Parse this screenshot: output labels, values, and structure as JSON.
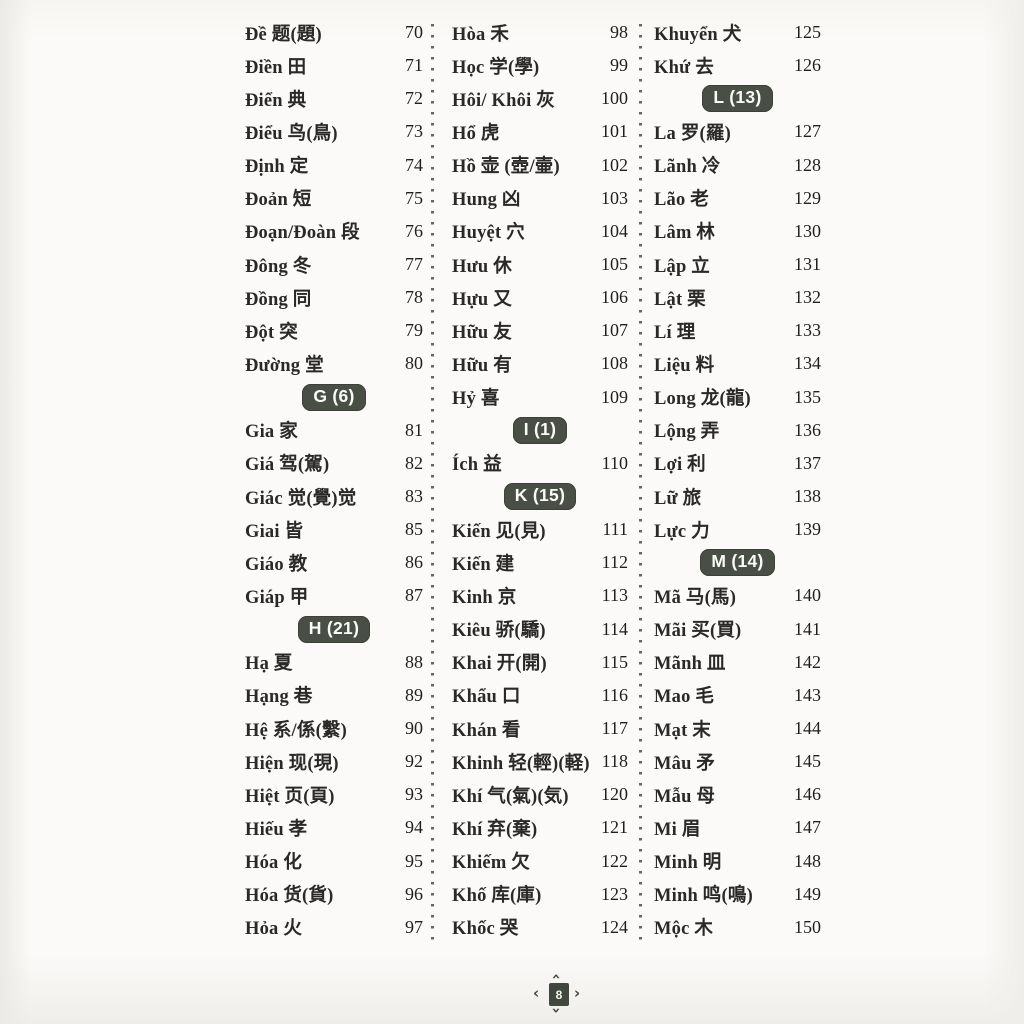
{
  "colors": {
    "badge_bg": "#4a4f46",
    "text": "#2a2927",
    "pager_dark": "#41463e"
  },
  "pager": {
    "number": "8",
    "chevron_left": "‹",
    "chevron_right": "›"
  },
  "columns": [
    {
      "rows": [
        {
          "type": "entry",
          "text": "Đề 题(題)",
          "page": "70"
        },
        {
          "type": "entry",
          "text": "Điền 田",
          "page": "71"
        },
        {
          "type": "entry",
          "text": "Điển 典",
          "page": "72"
        },
        {
          "type": "entry",
          "text": "Điểu 鸟(鳥)",
          "page": "73"
        },
        {
          "type": "entry",
          "text": "Định 定",
          "page": "74"
        },
        {
          "type": "entry",
          "text": "Đoản 短",
          "page": "75"
        },
        {
          "type": "entry",
          "text": "Đoạn/Đoàn 段",
          "page": "76"
        },
        {
          "type": "entry",
          "text": "Đông 冬",
          "page": "77"
        },
        {
          "type": "entry",
          "text": "Đồng 同",
          "page": "78"
        },
        {
          "type": "entry",
          "text": "Đột 突",
          "page": "79"
        },
        {
          "type": "entry",
          "text": "Đường 堂",
          "page": "80"
        },
        {
          "type": "badge",
          "label": "G (6)"
        },
        {
          "type": "entry",
          "text": "Gia 家",
          "page": "81"
        },
        {
          "type": "entry",
          "text": "Giá 驾(駕)",
          "page": "82"
        },
        {
          "type": "entry",
          "text": "Giác 觉(覺)觉",
          "page": "83"
        },
        {
          "type": "entry",
          "text": "Giai 皆",
          "page": "85"
        },
        {
          "type": "entry",
          "text": "Giáo 教",
          "page": "86"
        },
        {
          "type": "entry",
          "text": "Giáp 甲",
          "page": "87"
        },
        {
          "type": "badge",
          "label": "H (21)"
        },
        {
          "type": "entry",
          "text": "Hạ 夏",
          "page": "88"
        },
        {
          "type": "entry",
          "text": "Hạng 巷",
          "page": "89"
        },
        {
          "type": "entry",
          "text": "Hệ 系/係(繫)",
          "page": "90"
        },
        {
          "type": "entry",
          "text": "Hiện 现(現)",
          "page": "92"
        },
        {
          "type": "entry",
          "text": "Hiệt 页(頁)",
          "page": "93"
        },
        {
          "type": "entry",
          "text": "Hiếu 孝",
          "page": "94"
        },
        {
          "type": "entry",
          "text": "Hóa 化",
          "page": "95"
        },
        {
          "type": "entry",
          "text": "Hóa 货(貨)",
          "page": "96"
        },
        {
          "type": "entry",
          "text": "Hỏa 火",
          "page": "97"
        }
      ]
    },
    {
      "rows": [
        {
          "type": "entry",
          "text": "Hòa 禾",
          "page": "98"
        },
        {
          "type": "entry",
          "text": "Học 学(學)",
          "page": "99"
        },
        {
          "type": "entry",
          "text": "Hôi/ Khôi 灰",
          "page": "100"
        },
        {
          "type": "entry",
          "text": "Hổ 虎",
          "page": "101"
        },
        {
          "type": "entry",
          "text": "Hồ 壶 (壺/壷)",
          "page": "102"
        },
        {
          "type": "entry",
          "text": "Hung 凶",
          "page": "103"
        },
        {
          "type": "entry",
          "text": "Huyệt 穴",
          "page": "104"
        },
        {
          "type": "entry",
          "text": "Hưu 休",
          "page": "105"
        },
        {
          "type": "entry",
          "text": "Hựu 又",
          "page": "106"
        },
        {
          "type": "entry",
          "text": "Hữu 友",
          "page": "107"
        },
        {
          "type": "entry",
          "text": "Hữu 有",
          "page": "108"
        },
        {
          "type": "entry",
          "text": "Hỷ 喜",
          "page": "109"
        },
        {
          "type": "badge",
          "label": "I (1)"
        },
        {
          "type": "entry",
          "text": "Ích 益",
          "page": "110"
        },
        {
          "type": "badge",
          "label": "K (15)"
        },
        {
          "type": "entry",
          "text": "Kiến 见(見)",
          "page": "111"
        },
        {
          "type": "entry",
          "text": "Kiến 建",
          "page": "112"
        },
        {
          "type": "entry",
          "text": "Kinh 京",
          "page": "113"
        },
        {
          "type": "entry",
          "text": "Kiêu 骄(驕)",
          "page": "114"
        },
        {
          "type": "entry",
          "text": "Khai 开(開)",
          "page": "115"
        },
        {
          "type": "entry",
          "text": "Khẩu 口",
          "page": "116"
        },
        {
          "type": "entry",
          "text": "Khán 看",
          "page": "117"
        },
        {
          "type": "entry",
          "text": "Khinh 轻(輕)(軽)",
          "page": "118"
        },
        {
          "type": "entry",
          "text": "Khí 气(氣)(気)",
          "page": "120"
        },
        {
          "type": "entry",
          "text": "Khí 弃(棄)",
          "page": "121"
        },
        {
          "type": "entry",
          "text": "Khiếm 欠",
          "page": "122"
        },
        {
          "type": "entry",
          "text": "Khố 库(庫)",
          "page": "123"
        },
        {
          "type": "entry",
          "text": "Khốc 哭",
          "page": "124"
        }
      ]
    },
    {
      "rows": [
        {
          "type": "entry",
          "text": "Khuyển 犬",
          "page": "125"
        },
        {
          "type": "entry",
          "text": "Khứ 去",
          "page": "126"
        },
        {
          "type": "badge",
          "label": "L (13)"
        },
        {
          "type": "entry",
          "text": "La 罗(羅)",
          "page": "127"
        },
        {
          "type": "entry",
          "text": "Lãnh 冷",
          "page": "128"
        },
        {
          "type": "entry",
          "text": "Lão 老",
          "page": "129"
        },
        {
          "type": "entry",
          "text": "Lâm 林",
          "page": "130"
        },
        {
          "type": "entry",
          "text": "Lập 立",
          "page": "131"
        },
        {
          "type": "entry",
          "text": "Lật 栗",
          "page": "132"
        },
        {
          "type": "entry",
          "text": "Lí 理",
          "page": "133"
        },
        {
          "type": "entry",
          "text": "Liệu 料",
          "page": "134"
        },
        {
          "type": "entry",
          "text": "Long 龙(龍)",
          "page": "135"
        },
        {
          "type": "entry",
          "text": "Lộng 弄",
          "page": "136"
        },
        {
          "type": "entry",
          "text": "Lợi 利",
          "page": "137"
        },
        {
          "type": "entry",
          "text": "Lữ 旅",
          "page": "138"
        },
        {
          "type": "entry",
          "text": "Lực 力",
          "page": "139"
        },
        {
          "type": "badge",
          "label": "M (14)"
        },
        {
          "type": "entry",
          "text": "Mã 马(馬)",
          "page": "140"
        },
        {
          "type": "entry",
          "text": "Mãi 买(買)",
          "page": "141"
        },
        {
          "type": "entry",
          "text": "Mãnh 皿",
          "page": "142"
        },
        {
          "type": "entry",
          "text": "Mao 毛",
          "page": "143"
        },
        {
          "type": "entry",
          "text": "Mạt 末",
          "page": "144"
        },
        {
          "type": "entry",
          "text": "Mâu 矛",
          "page": "145"
        },
        {
          "type": "entry",
          "text": "Mẫu 母",
          "page": "146"
        },
        {
          "type": "entry",
          "text": "Mi 眉",
          "page": "147"
        },
        {
          "type": "entry",
          "text": "Minh 明",
          "page": "148"
        },
        {
          "type": "entry",
          "text": "Minh 鸣(鳴)",
          "page": "149"
        },
        {
          "type": "entry",
          "text": "Mộc 木",
          "page": "150"
        }
      ]
    }
  ]
}
